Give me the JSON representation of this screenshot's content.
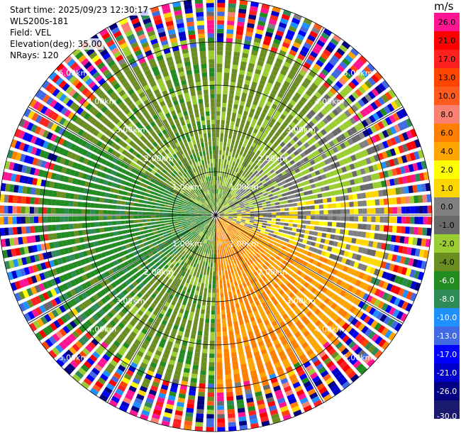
{
  "header": {
    "start_time": "Start time: 2025/09/23 12:30:17",
    "instrument": "WLS200s-181",
    "field": "Field: VEL",
    "elevation": "Elevation(deg): 35.00",
    "nrays": "NRays: 120"
  },
  "colorbar": {
    "unit": "m/s",
    "ticks": [
      "26.0",
      "21.0",
      "17.0",
      "13.0",
      "10.0",
      "8.0",
      "6.0",
      "4.0",
      "2.0",
      "1.0",
      "0.0",
      "-1.0",
      "-2.0",
      "-4.0",
      "-6.0",
      "-8.0",
      "-10.0",
      "-13.0",
      "-17.0",
      "-21.0",
      "-26.0",
      "-30.0"
    ],
    "colors": [
      "#ff1493",
      "#ff0000",
      "#ff2020",
      "#ff4500",
      "#ff5a1e",
      "#fa8072",
      "#ff7f00",
      "#ffa500",
      "#ffff00",
      "#ffd700",
      "#808080",
      "#696969",
      "#9acd32",
      "#6b8e23",
      "#228b22",
      "#2e8b57",
      "#1e90ff",
      "#4169e1",
      "#0000ff",
      "#0000cd",
      "#000080",
      "#191970"
    ]
  },
  "chart_data": {
    "type": "heatmap",
    "projection": "polar PPI",
    "field": "VEL",
    "units": "m/s",
    "n_rays": 120,
    "elevation_deg": 35.0,
    "range_max_km": 5.0,
    "range_rings_km": [
      1.0,
      2.0,
      3.0,
      4.0,
      5.0
    ],
    "range_labels": [
      "1.00km",
      "2.00km",
      "3.00km",
      "4.00km",
      "5.00km"
    ],
    "value_range": [
      -30.0,
      26.0
    ],
    "sectors": [
      {
        "azimuth_from_deg": 180,
        "azimuth_to_deg": 225,
        "mean_velocity": -5.0
      },
      {
        "azimuth_from_deg": 225,
        "azimuth_to_deg": 300,
        "mean_velocity": -7.0
      },
      {
        "azimuth_from_deg": 300,
        "azimuth_to_deg": 360,
        "mean_velocity": -5.0
      },
      {
        "azimuth_from_deg": 0,
        "azimuth_to_deg": 40,
        "mean_velocity": -4.5
      },
      {
        "azimuth_from_deg": 40,
        "azimuth_to_deg": 80,
        "mean_velocity": -2.0
      },
      {
        "azimuth_from_deg": 80,
        "azimuth_to_deg": 110,
        "mean_velocity": 0.0
      },
      {
        "azimuth_from_deg": 110,
        "azimuth_to_deg": 150,
        "mean_velocity": 3.5
      },
      {
        "azimuth_from_deg": 150,
        "azimuth_to_deg": 180,
        "mean_velocity": 4.5
      }
    ],
    "noise_beyond_km": 3.9,
    "noise_range": [
      -30.0,
      26.0
    ]
  }
}
